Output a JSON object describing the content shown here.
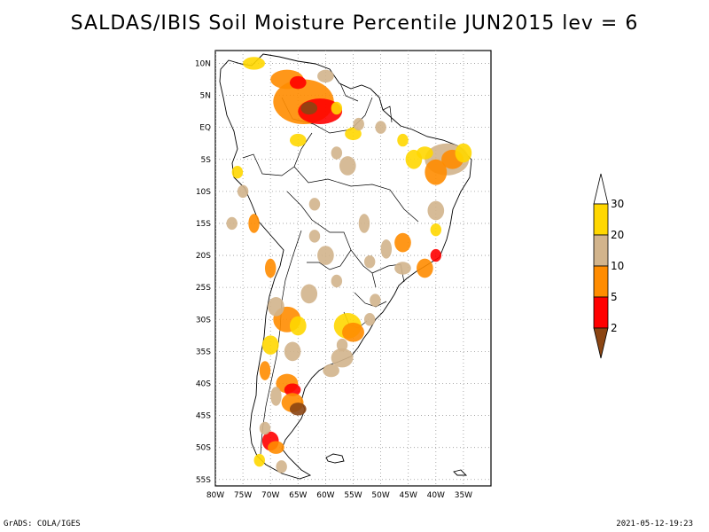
{
  "title": "SALDAS/IBIS Soil Moisture Percentile JUN2015 lev = 6",
  "footer": {
    "left": "GrADS: COLA/IGES",
    "right": "2021-05-12-19:23"
  },
  "map": {
    "lon_range": [
      -80,
      -30
    ],
    "lat_range": [
      -56,
      12
    ],
    "lon_labels": [
      "80W",
      "75W",
      "70W",
      "65W",
      "60W",
      "55W",
      "50W",
      "45W",
      "40W",
      "35W"
    ],
    "lat_labels": [
      "10N",
      "5N",
      "EQ",
      "5S",
      "10S",
      "15S",
      "20S",
      "25S",
      "30S",
      "35S",
      "40S",
      "45S",
      "50S",
      "55S"
    ],
    "continent": "South America",
    "gridlines": "dotted"
  },
  "legend": {
    "labels": [
      "30",
      "20",
      "10",
      "5",
      "2"
    ],
    "bins": [
      {
        "range": "> 30",
        "color": "#ffffff"
      },
      {
        "range": "20-30",
        "color": "#ffd700"
      },
      {
        "range": "10-20",
        "color": "#d2b48c"
      },
      {
        "range": "5-10",
        "color": "#ff8c00"
      },
      {
        "range": "2-5",
        "color": "#ff0000"
      },
      {
        "range": "< 2",
        "color": "#8b4513"
      }
    ]
  },
  "colors": {
    "gold": "#ffd700",
    "tan": "#d2b48c",
    "orange": "#ff8c00",
    "red": "#ff0000",
    "brown": "#8b4513"
  }
}
